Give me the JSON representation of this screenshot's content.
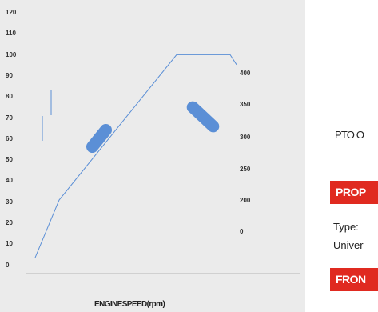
{
  "chart_data": {
    "type": "line",
    "title": "",
    "xlabel": "ENGINESPEED(rpm)",
    "ylabel": "",
    "y_ticks": [
      "120",
      "110",
      "100",
      "90",
      "80",
      "70",
      "60",
      "50",
      "40",
      "30",
      "20",
      "10",
      "0"
    ],
    "y_right_ticks": [
      "400",
      "350",
      "300",
      "250",
      "200",
      "0"
    ],
    "ylim": [
      0,
      120
    ],
    "x": [
      0,
      1,
      2,
      3,
      4
    ],
    "series": [
      {
        "values": [
          8,
          37,
          110,
          110,
          105
        ]
      }
    ],
    "grid": false,
    "legend": "none"
  },
  "right_panel": {
    "pto_text": "PTO O",
    "section1_title": "PROP",
    "type_label": "Type:",
    "type_value": "Univer",
    "section2_title": "FRON"
  },
  "colors": {
    "chart_background": "#ebebeb",
    "line": "#5b8fd6",
    "marker": "#5b8fd6",
    "accent_red": "#e02a20"
  }
}
